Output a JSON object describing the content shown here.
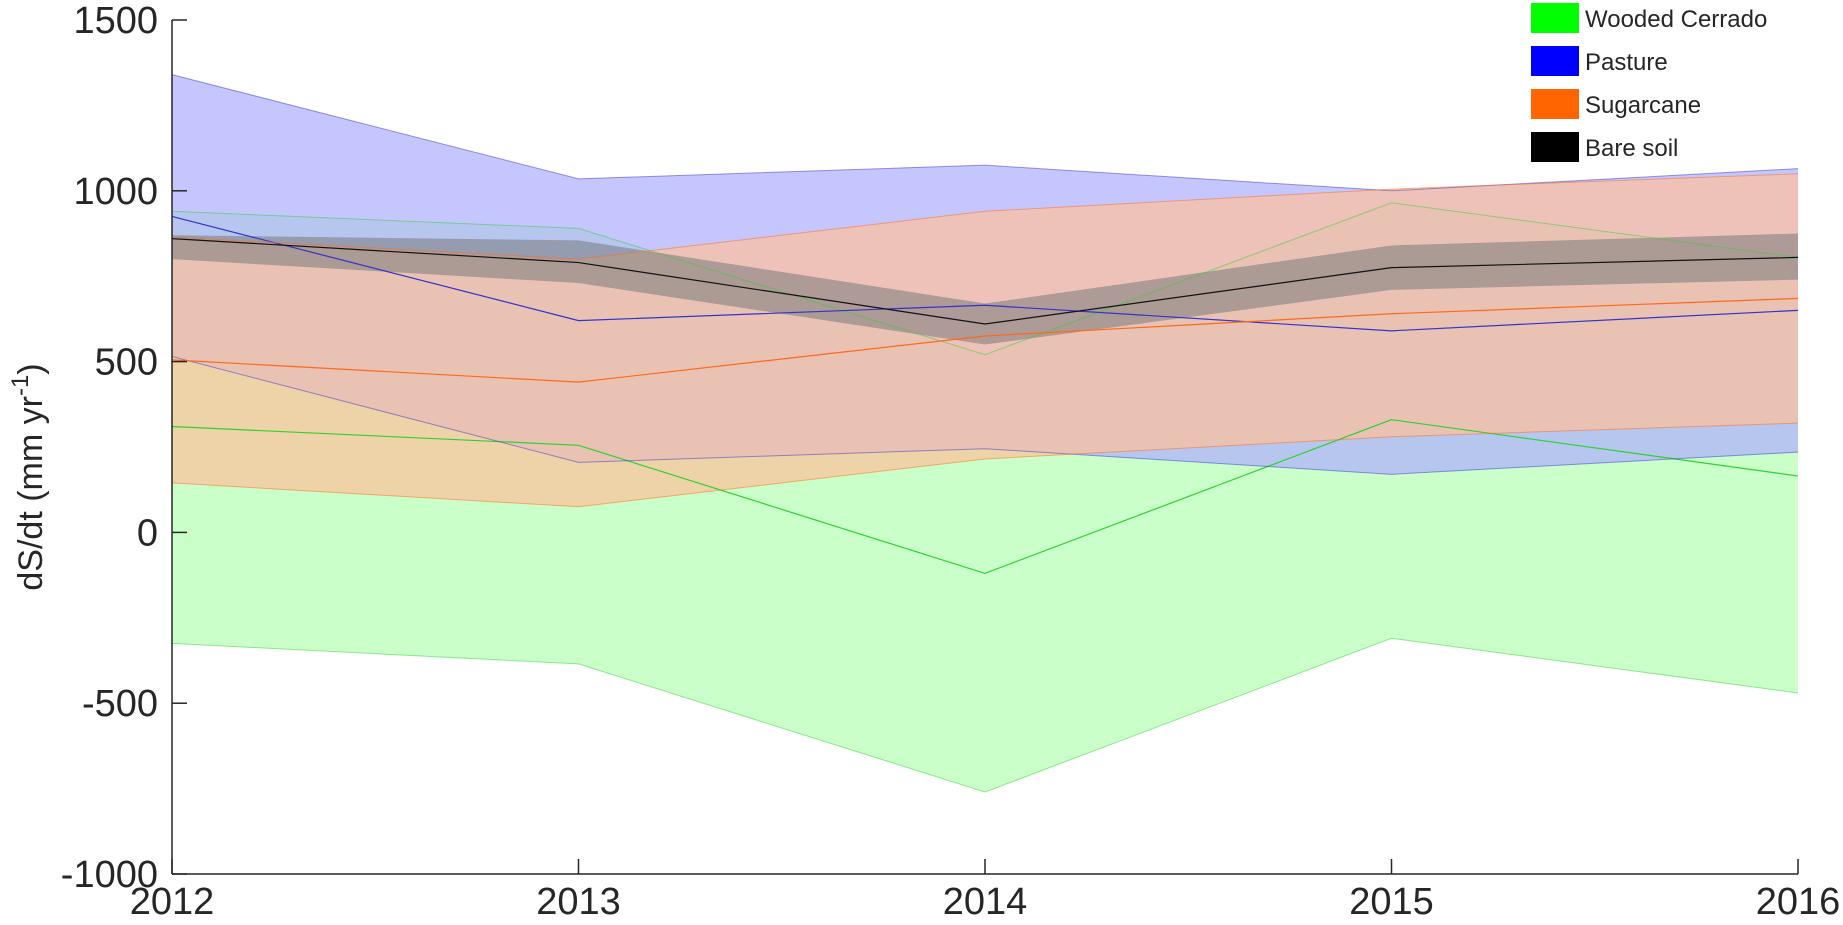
{
  "chart_data": {
    "type": "area",
    "title": "",
    "xlabel": "",
    "ylabel": "dS/dt (mm yr",
    "ylabel_superscript": "-1",
    "ylabel_suffix": ")",
    "x": [
      2012,
      2013,
      2014,
      2015,
      2016
    ],
    "x_tick_labels": [
      "2012",
      "2013",
      "2014",
      "2015",
      "2016"
    ],
    "xlim": [
      2012,
      2016
    ],
    "ylim": [
      -1000,
      1500
    ],
    "y_ticks": [
      -1000,
      -500,
      0,
      500,
      1000,
      1500
    ],
    "y_tick_labels": [
      "-1000",
      "-500",
      "0",
      "500",
      "1000",
      "1500"
    ],
    "grid": false,
    "legend_position": "top-right",
    "series": [
      {
        "name": "Wooded Cerrado",
        "color": "#00ff00",
        "band_color": "#b4ffb4",
        "line_color": "#2fd12f",
        "mean": [
          310,
          255,
          -120,
          330,
          165
        ],
        "upper": [
          940,
          890,
          520,
          965,
          805
        ],
        "lower": [
          -325,
          -385,
          -760,
          -310,
          -470
        ]
      },
      {
        "name": "Pasture",
        "color": "#0000ff",
        "band_color": "#aeaeff",
        "line_color": "#3333cc",
        "mean": [
          925,
          620,
          665,
          590,
          650
        ],
        "upper": [
          1340,
          1035,
          1075,
          1000,
          1065
        ],
        "lower": [
          515,
          205,
          245,
          170,
          235
        ]
      },
      {
        "name": "Sugarcane",
        "color": "#ff6600",
        "band_color": "#ffc09a",
        "line_color": "#ff6a1a",
        "mean": [
          505,
          440,
          575,
          640,
          685
        ],
        "upper": [
          865,
          800,
          940,
          1005,
          1050
        ],
        "lower": [
          145,
          75,
          215,
          280,
          320
        ]
      },
      {
        "name": "Bare soil",
        "color": "#000000",
        "band_color": "#7a7a7a",
        "line_color": "#111111",
        "mean": [
          860,
          790,
          610,
          775,
          805
        ],
        "upper": [
          870,
          855,
          670,
          840,
          875
        ],
        "lower": [
          800,
          730,
          550,
          710,
          740
        ]
      }
    ]
  }
}
